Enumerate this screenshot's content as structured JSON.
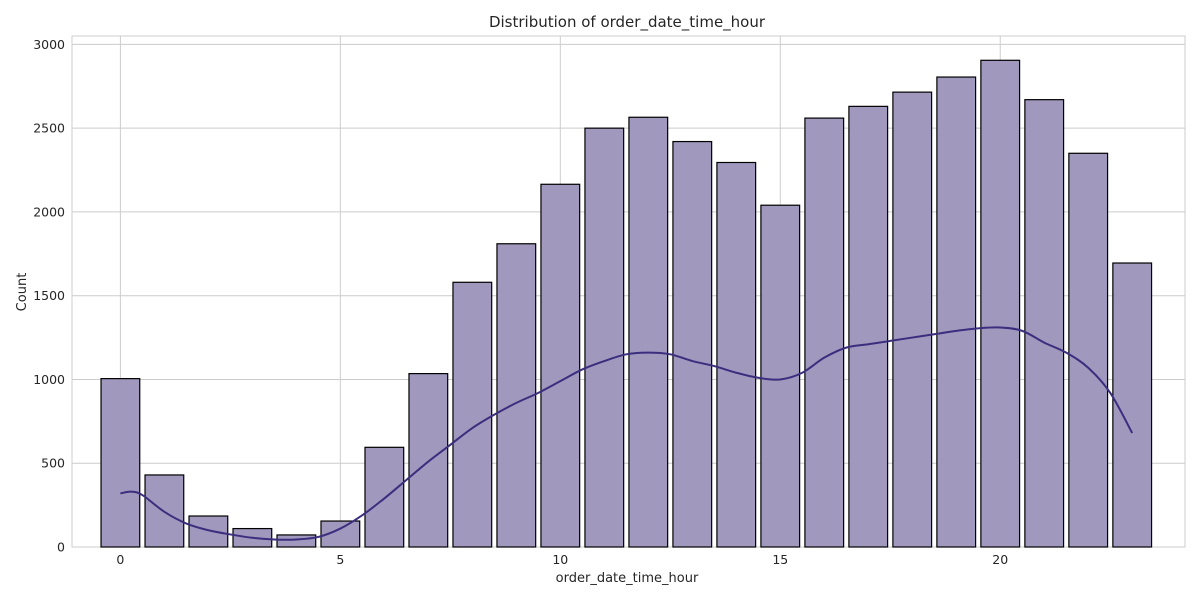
{
  "chart_data": {
    "type": "bar",
    "title": "Distribution of order_date_time_hour",
    "xlabel": "order_date_time_hour",
    "ylabel": "Count",
    "xlim": [
      -1.1,
      24.2
    ],
    "ylim": [
      0,
      3050
    ],
    "xticks": [
      0,
      5,
      10,
      15,
      20
    ],
    "yticks": [
      0,
      500,
      1000,
      1500,
      2000,
      2500,
      3000
    ],
    "grid": true,
    "colors": {
      "bar_fill": "#a198be",
      "bar_edge": "#000000",
      "kde_line": "#3b2e7e",
      "grid": "#cccccc"
    },
    "bins": [
      {
        "x": 0,
        "count": 1005
      },
      {
        "x": 1,
        "count": 430
      },
      {
        "x": 2,
        "count": 185
      },
      {
        "x": 3,
        "count": 110
      },
      {
        "x": 4,
        "count": 72
      },
      {
        "x": 5,
        "count": 155
      },
      {
        "x": 6,
        "count": 595
      },
      {
        "x": 7,
        "count": 1035
      },
      {
        "x": 8,
        "count": 1580
      },
      {
        "x": 9,
        "count": 1810
      },
      {
        "x": 10,
        "count": 2165
      },
      {
        "x": 11,
        "count": 2500
      },
      {
        "x": 12,
        "count": 2565
      },
      {
        "x": 13,
        "count": 2420
      },
      {
        "x": 14,
        "count": 2295
      },
      {
        "x": 15,
        "count": 2040
      },
      {
        "x": 16,
        "count": 2560
      },
      {
        "x": 17,
        "count": 2630
      },
      {
        "x": 18,
        "count": 2715
      },
      {
        "x": 19,
        "count": 2805
      },
      {
        "x": 20,
        "count": 2905
      },
      {
        "x": 21,
        "count": 2670
      },
      {
        "x": 22,
        "count": 2350
      },
      {
        "x": 23,
        "count": 1695
      }
    ],
    "kde": {
      "x": [
        0,
        0.25,
        0.5,
        1,
        1.5,
        2,
        2.5,
        3,
        3.5,
        4,
        4.5,
        5,
        5.5,
        6,
        6.5,
        7,
        7.5,
        8,
        8.5,
        9,
        9.5,
        10,
        10.5,
        11,
        11.5,
        12,
        12.5,
        13,
        13.5,
        14,
        14.5,
        15,
        15.5,
        16,
        16.5,
        17,
        17.5,
        18,
        18.5,
        19,
        19.5,
        20,
        20.5,
        21,
        21.5,
        22,
        22.5,
        23
      ],
      "y": [
        320,
        330,
        310,
        210,
        140,
        100,
        75,
        55,
        45,
        45,
        60,
        110,
        190,
        290,
        400,
        510,
        610,
        710,
        790,
        860,
        920,
        990,
        1060,
        1110,
        1150,
        1160,
        1150,
        1110,
        1080,
        1040,
        1010,
        1000,
        1040,
        1130,
        1190,
        1210,
        1230,
        1250,
        1270,
        1290,
        1305,
        1310,
        1290,
        1220,
        1160,
        1070,
        920,
        680
      ]
    }
  }
}
